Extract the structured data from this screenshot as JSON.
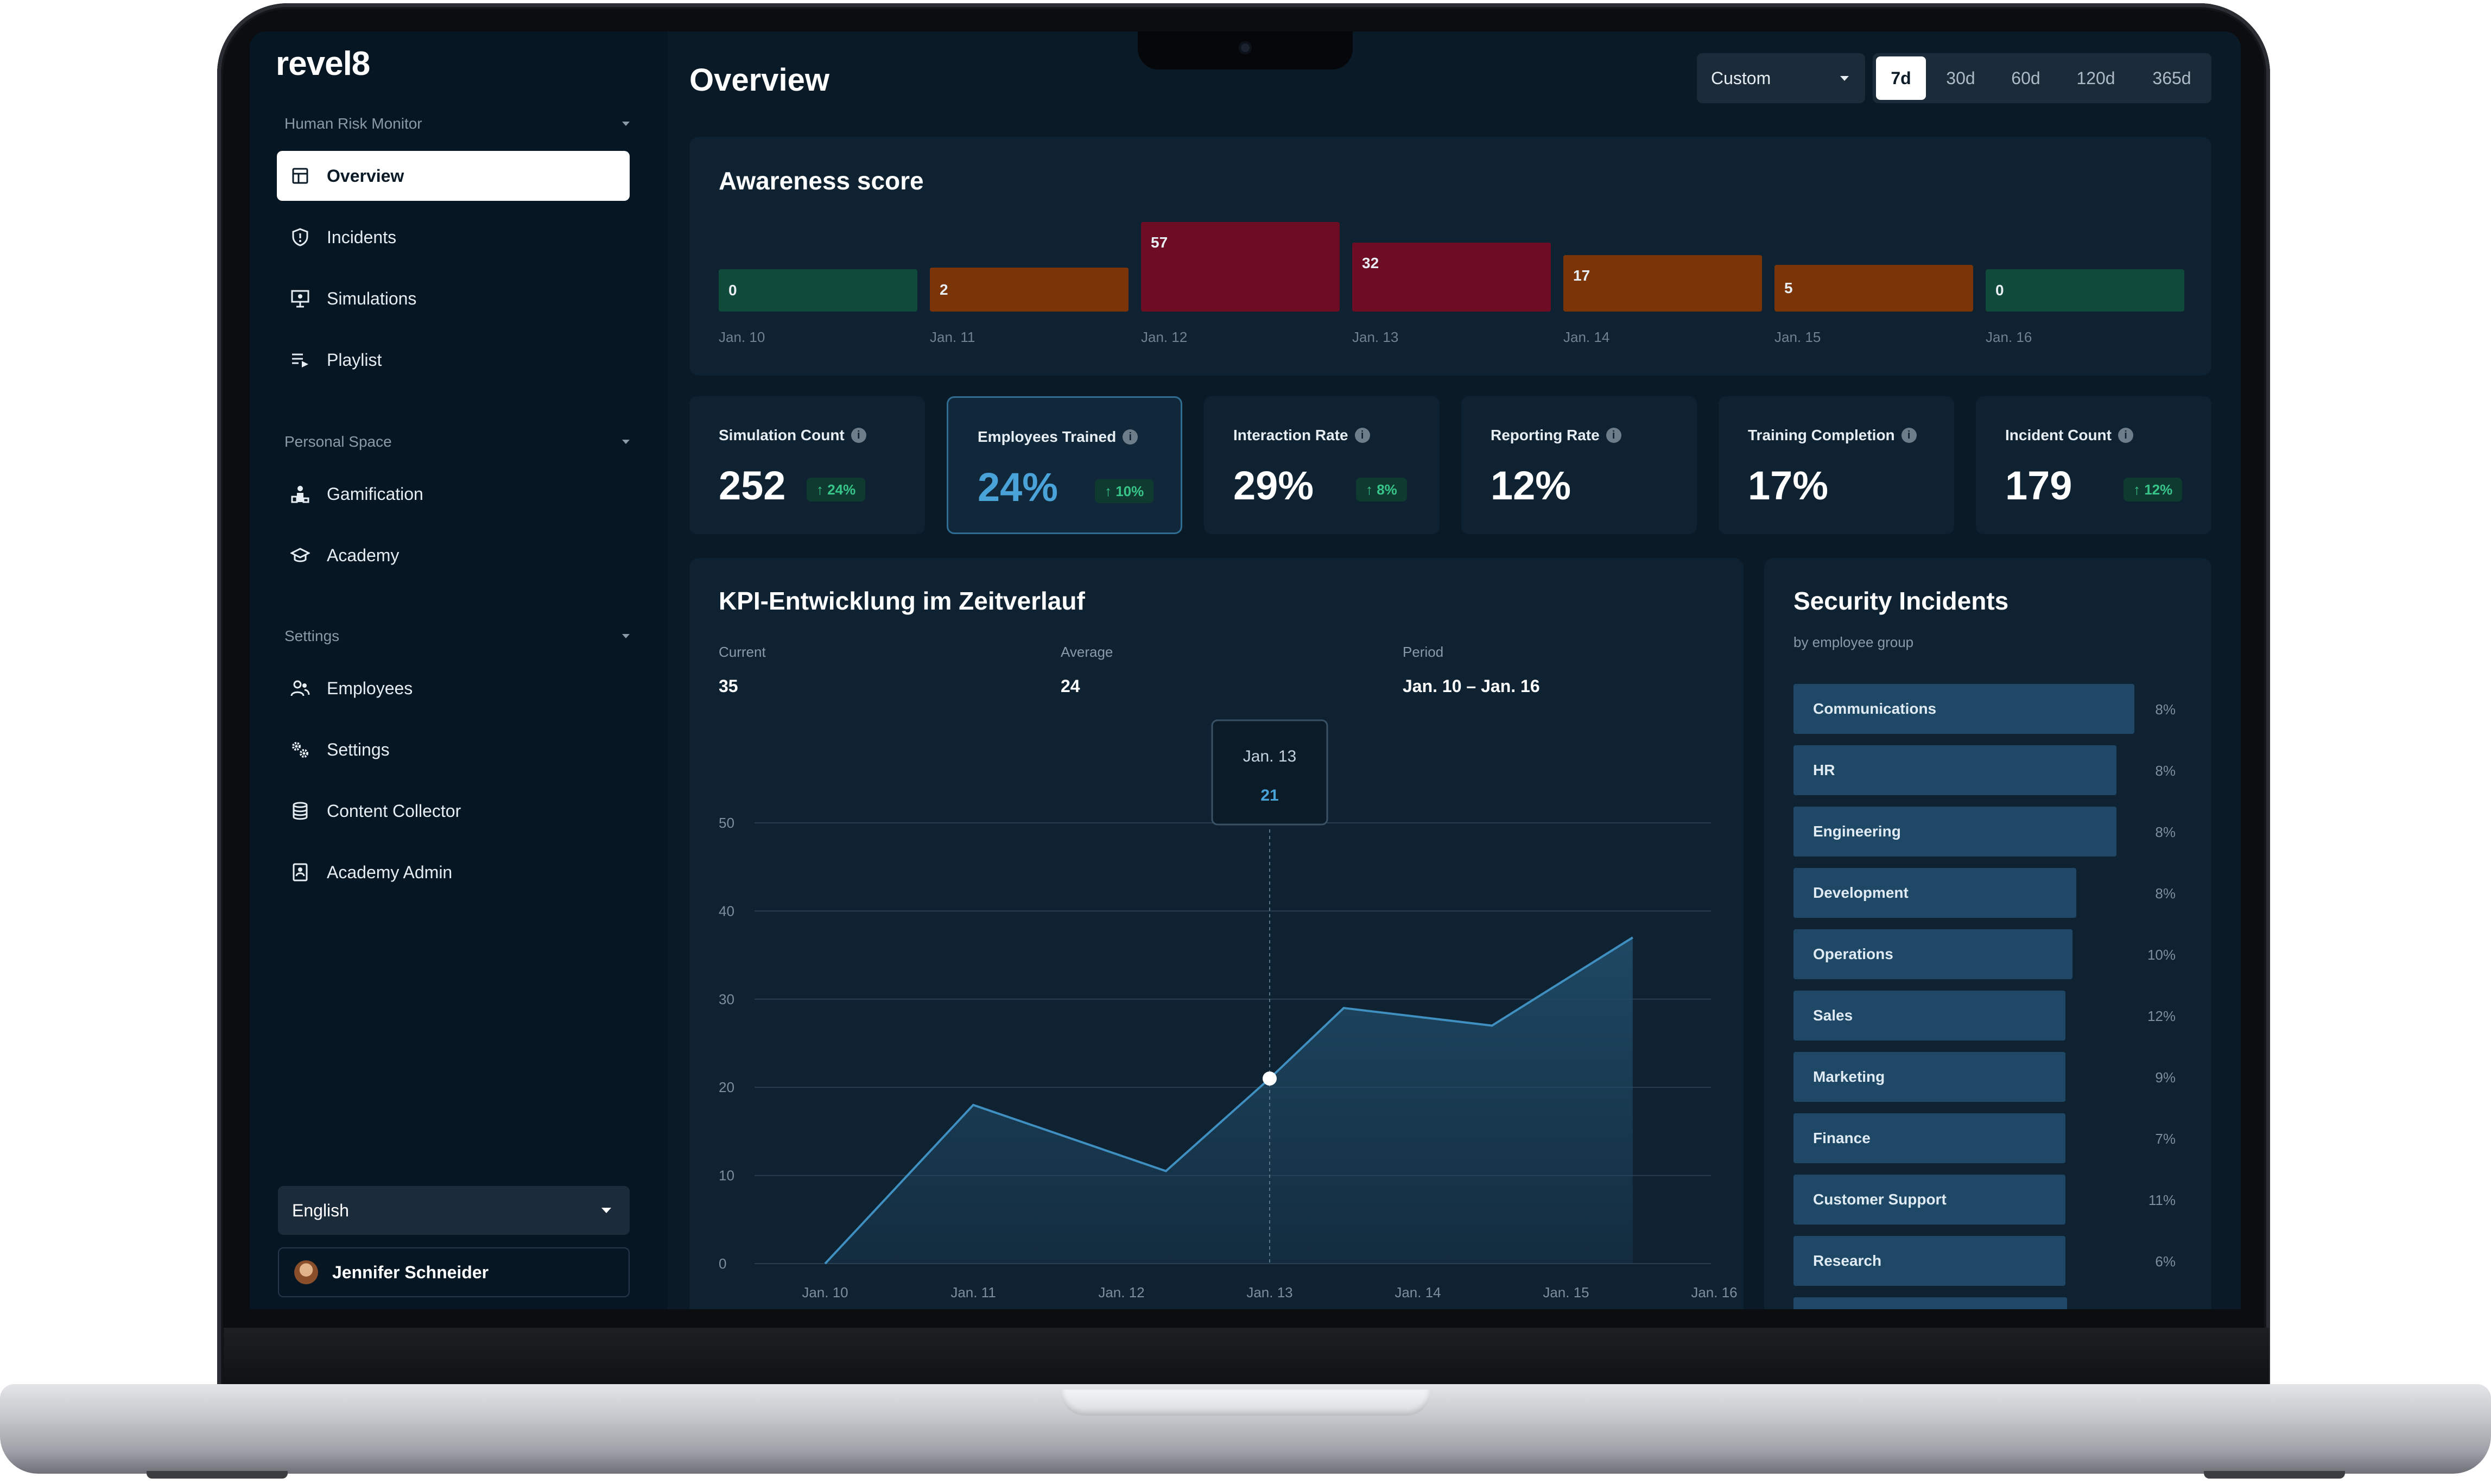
{
  "app": {
    "logo": "revel8",
    "page_title": "Overview"
  },
  "sidebar": {
    "sections": [
      {
        "heading": "Human Risk Monitor"
      },
      {
        "heading": "Personal Space"
      },
      {
        "heading": "Settings"
      }
    ],
    "items": [
      {
        "label": "Overview",
        "icon": "layout-grid-icon",
        "active": true
      },
      {
        "label": "Incidents",
        "icon": "shield-icon"
      },
      {
        "label": "Simulations",
        "icon": "presentation-icon"
      },
      {
        "label": "Playlist",
        "icon": "playlist-icon"
      },
      {
        "label": "Gamification",
        "icon": "podium-icon"
      },
      {
        "label": "Academy",
        "icon": "graduation-cap-icon"
      },
      {
        "label": "Employees",
        "icon": "users-icon"
      },
      {
        "label": "Settings",
        "icon": "gear-icon"
      },
      {
        "label": "Content Collector",
        "icon": "database-icon"
      },
      {
        "label": "Academy Admin",
        "icon": "book-admin-icon"
      }
    ],
    "language": "English",
    "user_name": "Jennifer Schneider"
  },
  "toolbar": {
    "range_select": "Custom",
    "ranges": [
      "7d",
      "30d",
      "60d",
      "120d",
      "365d"
    ],
    "active_range": "7d"
  },
  "awareness": {
    "title": "Awareness score",
    "days": [
      {
        "date": "Jan. 10",
        "value": 0,
        "color": "#0f4a3a"
      },
      {
        "date": "Jan. 11",
        "value": 2,
        "color": "#7a3406"
      },
      {
        "date": "Jan. 12",
        "value": 57,
        "color": "#6e0c24"
      },
      {
        "date": "Jan. 13",
        "value": 32,
        "color": "#6e0c24"
      },
      {
        "date": "Jan. 14",
        "value": 17,
        "color": "#7a3406"
      },
      {
        "date": "Jan. 15",
        "value": 5,
        "color": "#7a3406"
      },
      {
        "date": "Jan. 16",
        "value": 0,
        "color": "#0f4a3a"
      }
    ]
  },
  "kpis": [
    {
      "title": "Simulation Count",
      "value": "252",
      "badge": "↑ 24%"
    },
    {
      "title": "Employees Trained",
      "value": "24%",
      "badge": "↑ 10%",
      "selected": true
    },
    {
      "title": "Interaction Rate",
      "value": "29%",
      "badge": "↑ 8%"
    },
    {
      "title": "Reporting Rate",
      "value": "12%"
    },
    {
      "title": "Training Completion",
      "value": "17%"
    },
    {
      "title": "Incident Count",
      "value": "179",
      "badge": "↑ 12%"
    }
  ],
  "kpi_chart": {
    "title": "KPI-Entwicklung im Zeitverlauf",
    "stats": [
      {
        "label": "Current",
        "value": "35"
      },
      {
        "label": "Average",
        "value": "24"
      },
      {
        "label": "Period",
        "value": "Jan. 10 – Jan. 16"
      }
    ],
    "tooltip": {
      "date": "Jan. 13",
      "value": "21"
    }
  },
  "chart_data": {
    "type": "area",
    "x": [
      "Jan. 10",
      "Jan. 11",
      "Jan. 12",
      "Jan. 13",
      "Jan. 14",
      "Jan. 15",
      "Jan. 16"
    ],
    "series": [
      {
        "points": [
          [
            0,
            0
          ],
          [
            1.0,
            18
          ],
          [
            2.3,
            10.5
          ],
          [
            3.0,
            21
          ],
          [
            3.5,
            29
          ],
          [
            4.5,
            27
          ],
          [
            5.45,
            37
          ]
        ]
      }
    ],
    "yticks": [
      0,
      10,
      20,
      30,
      40,
      50
    ],
    "ylim": [
      0,
      50
    ],
    "xticks": [
      "Jan. 10",
      "Jan. 11",
      "Jan. 12",
      "Jan. 13",
      "Jan. 14",
      "Jan. 15",
      "Jan. 16"
    ],
    "highlight": {
      "x": "Jan. 13",
      "value": 21
    },
    "grid": true,
    "colors": {
      "line": "#3f8fc0",
      "fill": "#1f4a66"
    }
  },
  "incidents": {
    "title": "Security Incidents",
    "subtitle": "by employee group",
    "rows": [
      {
        "label": "Communications",
        "pct": "8%",
        "share": 0.94
      },
      {
        "label": "HR",
        "pct": "8%",
        "share": 0.89
      },
      {
        "label": "Engineering",
        "pct": "8%",
        "share": 0.89
      },
      {
        "label": "Development",
        "pct": "8%",
        "share": 0.78
      },
      {
        "label": "Operations",
        "pct": "10%",
        "share": 0.77
      },
      {
        "label": "Sales",
        "pct": "12%",
        "share": 0.75
      },
      {
        "label": "Marketing",
        "pct": "9%",
        "share": 0.75
      },
      {
        "label": "Finance",
        "pct": "7%",
        "share": 0.75
      },
      {
        "label": "Customer Support",
        "pct": "11%",
        "share": 0.75
      },
      {
        "label": "Research",
        "pct": "6%",
        "share": 0.75
      }
    ]
  }
}
